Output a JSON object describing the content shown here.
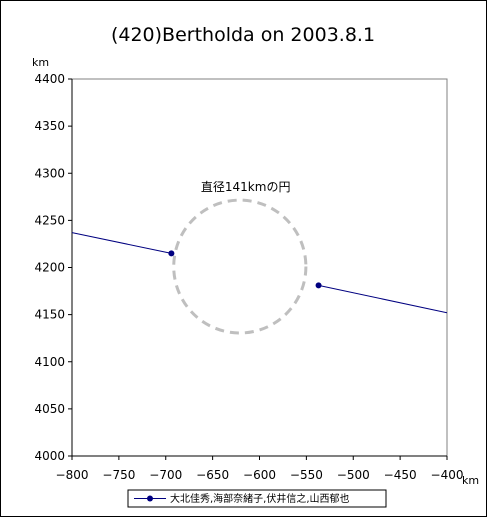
{
  "chart_data": {
    "type": "line",
    "title": "(420)Bertholda on 2003.8.1",
    "xlabel": "km",
    "ylabel": "km",
    "xlim": [
      -800,
      -400
    ],
    "ylim": [
      4000,
      4400
    ],
    "x_ticks": [
      -800,
      -750,
      -700,
      -650,
      -600,
      -550,
      -500,
      -450,
      -400
    ],
    "y_ticks": [
      4000,
      4050,
      4100,
      4150,
      4200,
      4250,
      4300,
      4350,
      4400
    ],
    "grid": false,
    "legend_position": "bottom",
    "series": [
      {
        "name": "大北佳秀,海部奈緒子,伏井信之,山西郁也",
        "color": "#000080",
        "segments": [
          {
            "x": [
              -800,
              -694
            ],
            "y": [
              4237,
              4215
            ],
            "markers": [
              -694
            ]
          },
          {
            "x": [
              -537,
              -400
            ],
            "y": [
              4181,
              4152
            ],
            "markers": [
              -537
            ]
          }
        ]
      }
    ],
    "circle": {
      "cx": -621,
      "cy": 4201,
      "diameter": 141,
      "color": "#bfbfbf",
      "style": "dashed"
    },
    "annotation": {
      "text": "直径141kmの円",
      "x": -635,
      "y": 4280
    }
  }
}
